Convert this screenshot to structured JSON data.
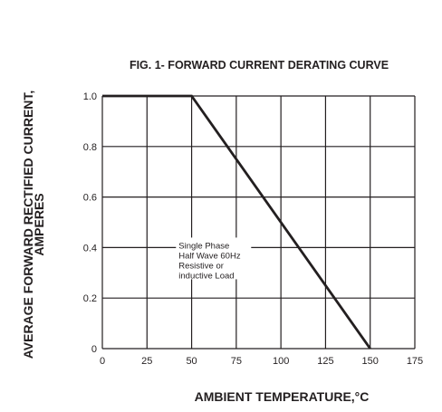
{
  "chart_data": {
    "type": "line",
    "title": "FIG. 1- FORWARD CURRENT DERATING CURVE",
    "xlabel": "AMBIENT TEMPERATURE,°C",
    "ylabel_line1": "AVERAGE FORWARD RECTIFIED CURRENT,",
    "ylabel_line2": "AMPERES",
    "xlim": [
      0,
      175
    ],
    "ylim": [
      0,
      1.0
    ],
    "x_ticks": [
      0,
      25,
      50,
      75,
      100,
      125,
      150,
      175
    ],
    "x_tick_labels": [
      "0",
      "25",
      "50",
      "75",
      "100",
      "125",
      "150",
      "175"
    ],
    "y_ticks": [
      0,
      0.2,
      0.4,
      0.6,
      0.8,
      1.0
    ],
    "y_tick_labels": [
      "0",
      "0.2",
      "0.4",
      "0.6",
      "0.8",
      "1.0"
    ],
    "grid": true,
    "series": [
      {
        "x": [
          0,
          50,
          150
        ],
        "y": [
          1.0,
          1.0,
          0
        ]
      }
    ],
    "annotation": {
      "lines": [
        "Single Phase",
        "Half Wave 60Hz",
        "Resistive or",
        "inductive Load"
      ],
      "anchor_x": 25,
      "anchor_y": 0.4
    },
    "colors": {
      "line": "#231f20",
      "grid": "#231f20",
      "text": "#231f20"
    }
  }
}
